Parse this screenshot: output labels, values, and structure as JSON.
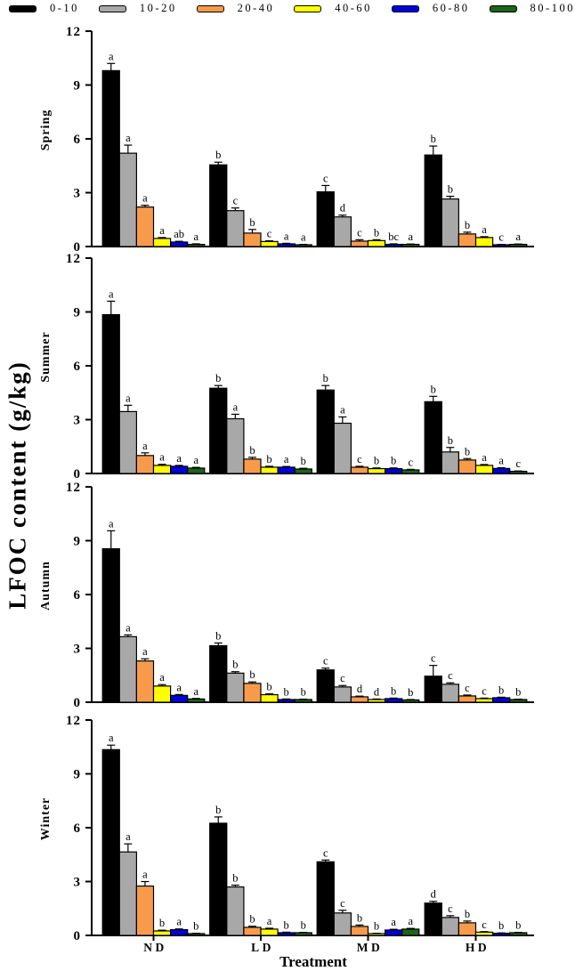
{
  "figure": {
    "ylabel": "LFOC content (g/kg)",
    "xlabel": "Treatment"
  },
  "legend": {
    "items": [
      {
        "label": "0-10",
        "color": "#000000"
      },
      {
        "label": "10-20",
        "color": "#a8a8a8"
      },
      {
        "label": "20-40",
        "color": "#f79b4b"
      },
      {
        "label": "40-60",
        "color": "#ffff00"
      },
      {
        "label": "60-80",
        "color": "#0000dd"
      },
      {
        "label": "80-100",
        "color": "#1b6418"
      }
    ]
  },
  "chart_data": {
    "type": "bar",
    "title": "",
    "xlabel": "Treatment",
    "ylabel": "LFOC content (g/kg)",
    "ylim": [
      0,
      12
    ],
    "yticks": [
      0,
      3,
      6,
      9,
      12
    ],
    "grid": false,
    "legend_position": "top",
    "error_bars": true,
    "categories": [
      "ND",
      "LD",
      "MD",
      "HD"
    ],
    "depth_series": [
      "0-10",
      "10-20",
      "20-40",
      "40-60",
      "60-80",
      "80-100"
    ],
    "series_colors": [
      "#000000",
      "#a8a8a8",
      "#f79b4b",
      "#ffff00",
      "#0000dd",
      "#1b6418"
    ],
    "panels": [
      {
        "season": "Spring",
        "series": [
          {
            "name": "0-10",
            "values": [
              9.8,
              4.55,
              3.05,
              5.1
            ],
            "errors": [
              0.4,
              0.15,
              0.35,
              0.5
            ],
            "letters": [
              "a",
              "b",
              "c",
              "b"
            ]
          },
          {
            "name": "10-20",
            "values": [
              5.2,
              2.0,
              1.65,
              2.65
            ],
            "errors": [
              0.45,
              0.15,
              0.1,
              0.15
            ],
            "letters": [
              "a",
              "c",
              "d",
              "b"
            ]
          },
          {
            "name": "20-40",
            "values": [
              2.2,
              0.75,
              0.3,
              0.7
            ],
            "errors": [
              0.1,
              0.2,
              0.08,
              0.1
            ],
            "letters": [
              "a",
              "b",
              "c",
              "b"
            ]
          },
          {
            "name": "40-60",
            "values": [
              0.45,
              0.28,
              0.33,
              0.5
            ],
            "errors": [
              0.05,
              0.04,
              0.05,
              0.05
            ],
            "letters": [
              "a",
              "c",
              "b",
              "a"
            ]
          },
          {
            "name": "60-80",
            "values": [
              0.25,
              0.15,
              0.12,
              0.1
            ],
            "errors": [
              0.04,
              0.03,
              0.03,
              0.02
            ],
            "letters": [
              "ab",
              "a",
              "bc",
              "c"
            ]
          },
          {
            "name": "80-100",
            "values": [
              0.12,
              0.1,
              0.12,
              0.12
            ],
            "errors": [
              0.03,
              0.02,
              0.02,
              0.02
            ],
            "letters": [
              "a",
              "a",
              "a",
              "a"
            ]
          }
        ]
      },
      {
        "season": "Summer",
        "series": [
          {
            "name": "0-10",
            "values": [
              8.85,
              4.75,
              4.65,
              4.0
            ],
            "errors": [
              0.75,
              0.15,
              0.25,
              0.3
            ],
            "letters": [
              "a",
              "b",
              "b",
              "b"
            ]
          },
          {
            "name": "10-20",
            "values": [
              3.45,
              3.05,
              2.8,
              1.2
            ],
            "errors": [
              0.35,
              0.25,
              0.35,
              0.25
            ],
            "letters": [
              "a",
              "a",
              "a",
              "b"
            ]
          },
          {
            "name": "20-40",
            "values": [
              1.0,
              0.8,
              0.35,
              0.75
            ],
            "errors": [
              0.15,
              0.1,
              0.05,
              0.08
            ],
            "letters": [
              "a",
              "b",
              "c",
              "b"
            ]
          },
          {
            "name": "40-60",
            "values": [
              0.45,
              0.35,
              0.27,
              0.45
            ],
            "errors": [
              0.06,
              0.05,
              0.04,
              0.05
            ],
            "letters": [
              "a",
              "b",
              "b",
              "a"
            ]
          },
          {
            "name": "60-80",
            "values": [
              0.4,
              0.35,
              0.27,
              0.28
            ],
            "errors": [
              0.05,
              0.04,
              0.04,
              0.04
            ],
            "letters": [
              "a",
              "a",
              "b",
              "a"
            ]
          },
          {
            "name": "80-100",
            "values": [
              0.3,
              0.25,
              0.2,
              0.12
            ],
            "errors": [
              0.04,
              0.04,
              0.03,
              0.02
            ],
            "letters": [
              "a",
              "b",
              "c",
              "c"
            ]
          }
        ]
      },
      {
        "season": "Autumn",
        "series": [
          {
            "name": "0-10",
            "values": [
              8.55,
              3.15,
              1.8,
              1.45
            ],
            "errors": [
              1.0,
              0.15,
              0.1,
              0.6
            ],
            "letters": [
              "a",
              "b",
              "c",
              "c"
            ]
          },
          {
            "name": "10-20",
            "values": [
              3.65,
              1.62,
              0.85,
              1.0
            ],
            "errors": [
              0.1,
              0.08,
              0.08,
              0.08
            ],
            "letters": [
              "a",
              "b",
              "c",
              "c"
            ]
          },
          {
            "name": "20-40",
            "values": [
              2.3,
              1.05,
              0.3,
              0.35
            ],
            "errors": [
              0.12,
              0.08,
              0.04,
              0.05
            ],
            "letters": [
              "a",
              "b",
              "d",
              "c"
            ]
          },
          {
            "name": "40-60",
            "values": [
              0.9,
              0.42,
              0.15,
              0.2
            ],
            "errors": [
              0.08,
              0.05,
              0.03,
              0.03
            ],
            "letters": [
              "a",
              "b",
              "d",
              "c"
            ]
          },
          {
            "name": "60-80",
            "values": [
              0.38,
              0.15,
              0.2,
              0.25
            ],
            "errors": [
              0.05,
              0.03,
              0.03,
              0.03
            ],
            "letters": [
              "a",
              "b",
              "b",
              "b"
            ]
          },
          {
            "name": "80-100",
            "values": [
              0.18,
              0.15,
              0.13,
              0.15
            ],
            "errors": [
              0.03,
              0.02,
              0.02,
              0.02
            ],
            "letters": [
              "a",
              "b",
              "b",
              "b"
            ]
          }
        ]
      },
      {
        "season": "Winter",
        "series": [
          {
            "name": "0-10",
            "values": [
              10.35,
              6.25,
              4.1,
              1.8
            ],
            "errors": [
              0.25,
              0.35,
              0.1,
              0.1
            ],
            "letters": [
              "a",
              "b",
              "c",
              "d"
            ]
          },
          {
            "name": "10-20",
            "values": [
              4.65,
              2.7,
              1.25,
              1.0
            ],
            "errors": [
              0.45,
              0.1,
              0.15,
              0.1
            ],
            "letters": [
              "a",
              "b",
              "c",
              "c"
            ]
          },
          {
            "name": "20-40",
            "values": [
              2.75,
              0.45,
              0.5,
              0.7
            ],
            "errors": [
              0.25,
              0.06,
              0.08,
              0.1
            ],
            "letters": [
              "a",
              "b",
              "b",
              "b"
            ]
          },
          {
            "name": "40-60",
            "values": [
              0.25,
              0.35,
              0.1,
              0.18
            ],
            "errors": [
              0.04,
              0.05,
              0.02,
              0.03
            ],
            "letters": [
              "b",
              "a",
              "b",
              "c"
            ]
          },
          {
            "name": "60-80",
            "values": [
              0.32,
              0.15,
              0.3,
              0.12
            ],
            "errors": [
              0.04,
              0.03,
              0.04,
              0.02
            ],
            "letters": [
              "a",
              "b",
              "a",
              "b"
            ]
          },
          {
            "name": "80-100",
            "values": [
              0.1,
              0.15,
              0.35,
              0.15
            ],
            "errors": [
              0.02,
              0.02,
              0.04,
              0.02
            ],
            "letters": [
              "b",
              "b",
              "a",
              "b"
            ]
          }
        ]
      }
    ]
  }
}
